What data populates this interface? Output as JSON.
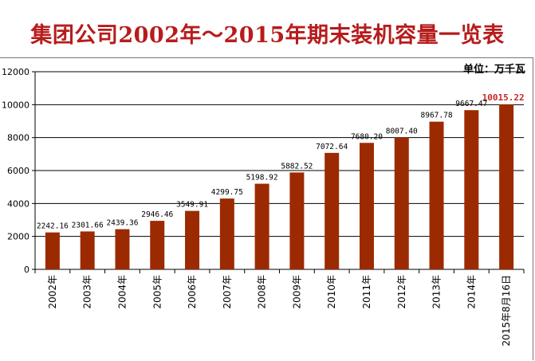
{
  "title": "集团公司2002年～2015年期末装机容量一览表",
  "unit_label": "单位：万千瓦",
  "colors": {
    "title": "#b71c1c",
    "bar": "#9c2a00",
    "highlight_label": "#c62828"
  },
  "chart_data": {
    "type": "bar",
    "title": "集团公司2002年～2015年期末装机容量一览表",
    "unit": "单位：万千瓦",
    "categories": [
      "2002年",
      "2003年",
      "2004年",
      "2005年",
      "2006年",
      "2007年",
      "2008年",
      "2009年",
      "2010年",
      "2011年",
      "2012年",
      "2013年",
      "2014年",
      "2015年8月16日"
    ],
    "values": [
      2242.16,
      2301.66,
      2439.36,
      2946.46,
      3549.91,
      4299.75,
      5198.92,
      5882.52,
      7072.64,
      7680.2,
      8007.4,
      8967.78,
      9667.47,
      10015.22
    ],
    "data_labels": [
      "2242.16",
      "2301.66",
      "2439.36",
      "2946.46",
      "3549.91",
      "4299.75",
      "5198.92",
      "5882.52",
      "7072.64",
      "7680.20",
      "8007.40",
      "8967.78",
      "9667.47",
      "10015.22"
    ],
    "highlight_index": 13,
    "ylim": [
      0,
      12000
    ],
    "yticks": [
      0,
      2000,
      4000,
      6000,
      8000,
      10000,
      12000
    ],
    "ytick_labels": [
      "0",
      "2000",
      "4000",
      "6000",
      "8000",
      "10000",
      "12000"
    ],
    "grid": true,
    "legend": "none"
  }
}
